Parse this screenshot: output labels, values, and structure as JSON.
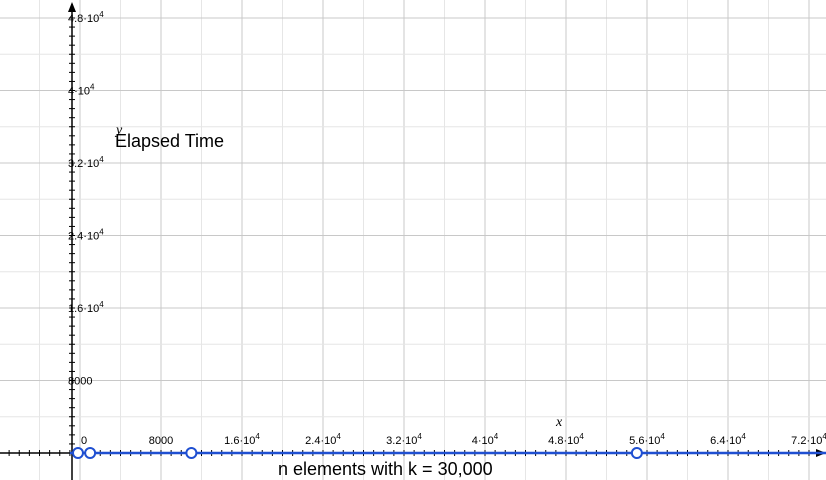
{
  "chart_data": {
    "type": "line",
    "title": "",
    "ylabel": "Elapsed Time",
    "xlabel": "n elements with k = 30,000",
    "x_var": "x",
    "y_var": "y",
    "xlim": [
      -2000,
      74000
    ],
    "ylim": [
      -1000,
      48500
    ],
    "grid": true,
    "x_ticks": [
      {
        "value": 0,
        "label": "0"
      },
      {
        "value": 8000,
        "label": "8000"
      },
      {
        "value": 16000,
        "label": "1.6·10",
        "exp": "4"
      },
      {
        "value": 24000,
        "label": "2.4·10",
        "exp": "4"
      },
      {
        "value": 32000,
        "label": "3.2·10",
        "exp": "4"
      },
      {
        "value": 40000,
        "label": "4·10",
        "exp": "4"
      },
      {
        "value": 48000,
        "label": "4.8·10",
        "exp": "4"
      },
      {
        "value": 56000,
        "label": "5.6·10",
        "exp": "4"
      },
      {
        "value": 64000,
        "label": "6.4·10",
        "exp": "4"
      },
      {
        "value": 72000,
        "label": "7.2·10",
        "exp": "4"
      }
    ],
    "y_ticks": [
      {
        "value": 8000,
        "label": "8000"
      },
      {
        "value": 16000,
        "label": "1.6·10",
        "exp": "4"
      },
      {
        "value": 24000,
        "label": "2.4·10",
        "exp": "4"
      },
      {
        "value": 32000,
        "label": "3.2·10",
        "exp": "4"
      },
      {
        "value": 40000,
        "label": "4·10",
        "exp": "4"
      },
      {
        "value": 48000,
        "label": "4.8·10",
        "exp": "4"
      }
    ],
    "series": [
      {
        "color": "#1f4fd1",
        "x": [
          -1000,
          0,
          10000,
          54000,
          74000
        ],
        "y": [
          0,
          0,
          0,
          0,
          0
        ],
        "open_points": [
          {
            "x": -200,
            "y": 0
          },
          {
            "x": 1000,
            "y": 0
          },
          {
            "x": 11000,
            "y": 0
          },
          {
            "x": 55000,
            "y": 0
          }
        ]
      }
    ]
  }
}
